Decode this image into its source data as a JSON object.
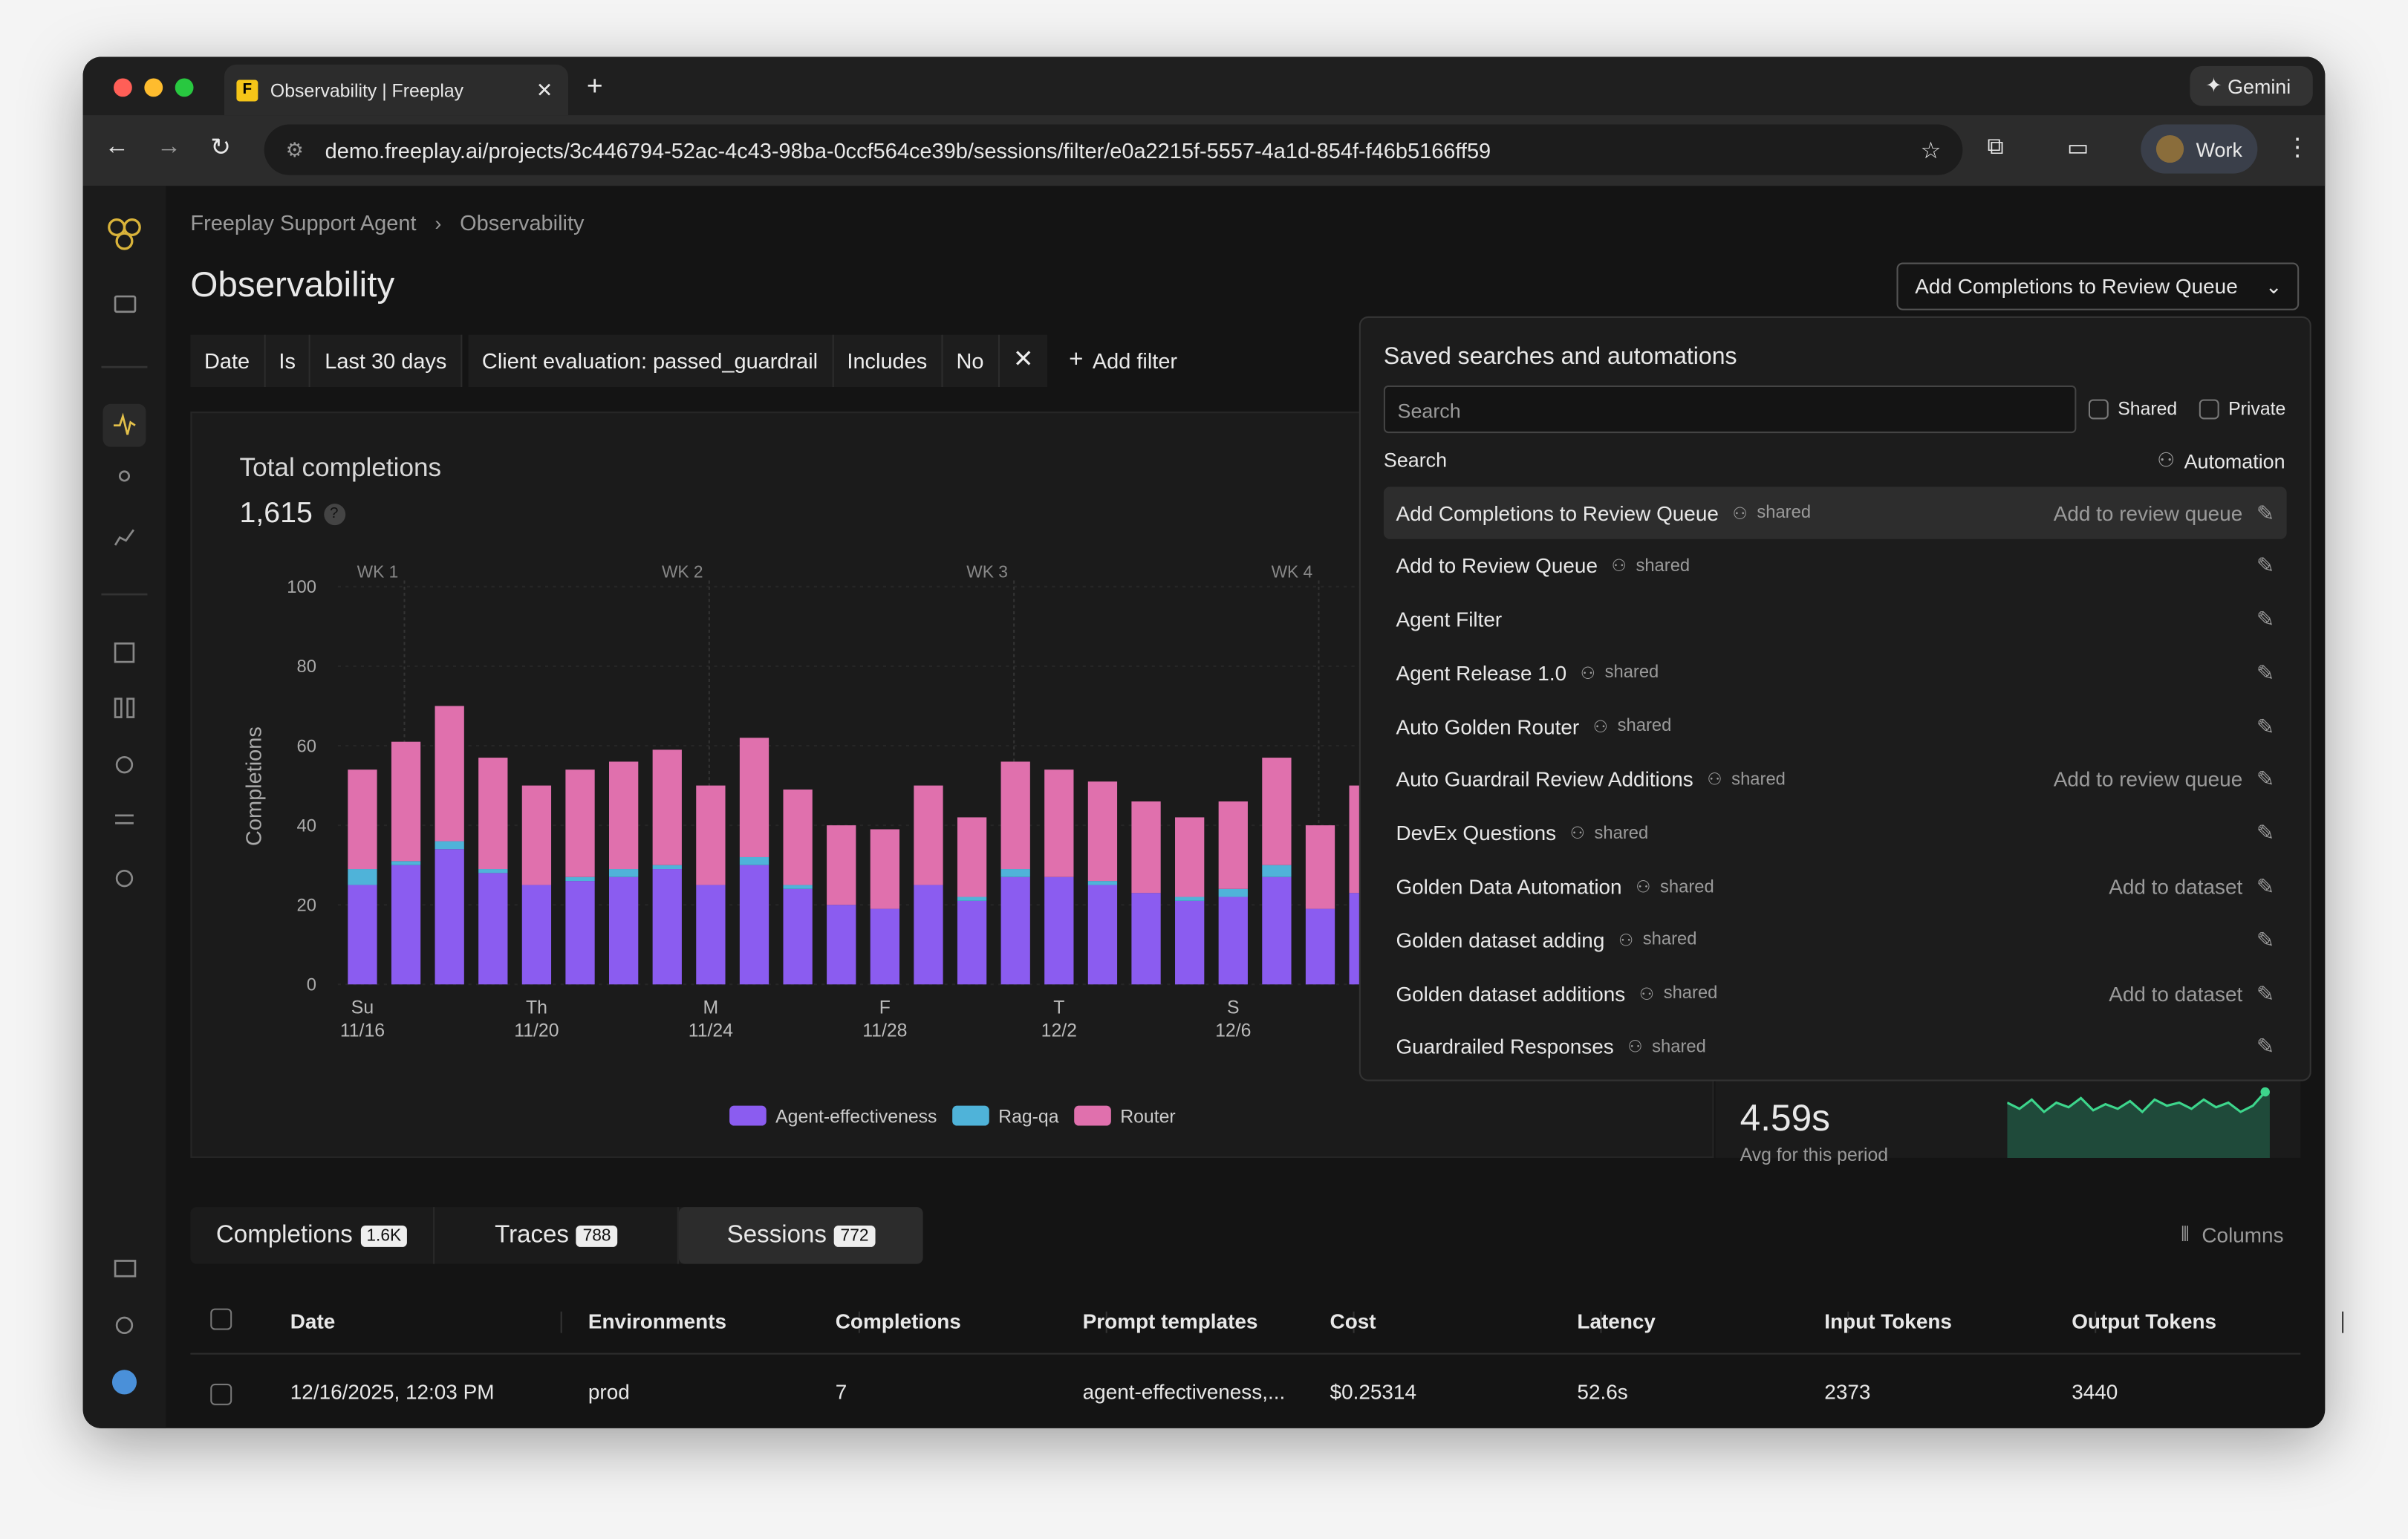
{
  "browser": {
    "tab_title": "Observability | Freeplay",
    "url": "demo.freeplay.ai/projects/3c446794-52ac-4c43-98ba-0ccf564ce39b/sessions/filter/e0a2215f-5557-4a1d-854f-f46b5166ff59",
    "gemini": "Gemini",
    "profile": "Work"
  },
  "breadcrumb": [
    "Freeplay Support Agent",
    "Observability"
  ],
  "page_title": "Observability",
  "review_button": "Add Completions to Review Queue",
  "filters": [
    [
      "Date",
      "Is",
      "Last 30 days"
    ],
    [
      "Client evaluation: passed_guardrail",
      "Includes",
      "No"
    ]
  ],
  "add_filter": "Add filter",
  "chart_data": {
    "type": "bar",
    "stacked": true,
    "title": "Total completions",
    "total": "1,615",
    "ylabel": "Completions",
    "ylim": [
      0,
      100
    ],
    "yticks": [
      0,
      20,
      40,
      60,
      80,
      100
    ],
    "grid": true,
    "week_labels": [
      "WK 1",
      "WK 2",
      "WK 3",
      "WK 4"
    ],
    "categories": [
      "Su",
      null,
      null,
      null,
      "Th",
      null,
      null,
      null,
      "M",
      null,
      null,
      null,
      "F",
      null,
      null,
      null,
      "T",
      null,
      null,
      null,
      "S",
      null,
      null,
      null
    ],
    "dates": [
      "11/16",
      null,
      null,
      null,
      "11/20",
      null,
      null,
      null,
      "11/24",
      null,
      null,
      null,
      "11/28",
      null,
      null,
      null,
      "12/2",
      null,
      null,
      null,
      "12/6",
      null,
      null,
      null
    ],
    "series": [
      {
        "name": "Agent-effectiveness",
        "color": "#8b5cf0",
        "values": [
          25,
          30,
          34,
          28,
          25,
          26,
          27,
          29,
          25,
          30,
          24,
          20,
          19,
          25,
          21,
          27,
          27,
          25,
          23,
          21,
          22,
          27,
          19,
          23
        ]
      },
      {
        "name": "Rag-qa",
        "color": "#4fb3d9",
        "values": [
          4,
          1,
          2,
          1,
          0,
          1,
          2,
          1,
          0,
          2,
          1,
          0,
          0,
          0,
          1,
          2,
          0,
          1,
          0,
          1,
          2,
          3,
          0,
          0
        ]
      },
      {
        "name": "Router",
        "color": "#e070ad",
        "values": [
          25,
          30,
          34,
          28,
          25,
          27,
          27,
          29,
          25,
          30,
          24,
          20,
          20,
          25,
          20,
          27,
          27,
          25,
          23,
          20,
          22,
          27,
          21,
          27
        ]
      }
    ]
  },
  "latency": {
    "value": "4.59s",
    "caption": "Avg for this period"
  },
  "saved_searches": {
    "title": "Saved searches and automations",
    "search_placeholder": "Search",
    "filters": [
      "Shared",
      "Private"
    ],
    "columns": [
      "Search",
      "Automation"
    ],
    "items": [
      {
        "name": "Add Completions to Review Queue",
        "tag": "shared",
        "action": "Add to review queue"
      },
      {
        "name": "Add to Review Queue",
        "tag": "shared",
        "action": null
      },
      {
        "name": "Agent Filter",
        "tag": null,
        "action": null
      },
      {
        "name": "Agent Release 1.0",
        "tag": "shared",
        "action": null
      },
      {
        "name": "Auto Golden Router",
        "tag": "shared",
        "action": null
      },
      {
        "name": "Auto Guardrail Review Additions",
        "tag": "shared",
        "action": "Add to review queue"
      },
      {
        "name": "DevEx Questions",
        "tag": "shared",
        "action": null
      },
      {
        "name": "Golden Data Automation",
        "tag": "shared",
        "action": "Add to dataset"
      },
      {
        "name": "Golden dataset adding",
        "tag": "shared",
        "action": null
      },
      {
        "name": "Golden dataset additions",
        "tag": "shared",
        "action": "Add to dataset"
      },
      {
        "name": "Guardrailed Responses",
        "tag": "shared",
        "action": null
      }
    ]
  },
  "tabs": [
    {
      "label": "Completions",
      "count": "1.6K"
    },
    {
      "label": "Traces",
      "count": "788"
    },
    {
      "label": "Sessions",
      "count": "772"
    }
  ],
  "columns_button": "Columns",
  "table": {
    "headers": [
      "Date",
      "Environments",
      "Completions",
      "Prompt templates",
      "Cost",
      "Latency",
      "Input Tokens",
      "Output Tokens"
    ],
    "rows": [
      [
        "12/16/2025, 12:03 PM",
        "prod",
        "7",
        "agent-effectiveness,...",
        "$0.25314",
        "52.6s",
        "2373",
        "3440"
      ]
    ]
  }
}
